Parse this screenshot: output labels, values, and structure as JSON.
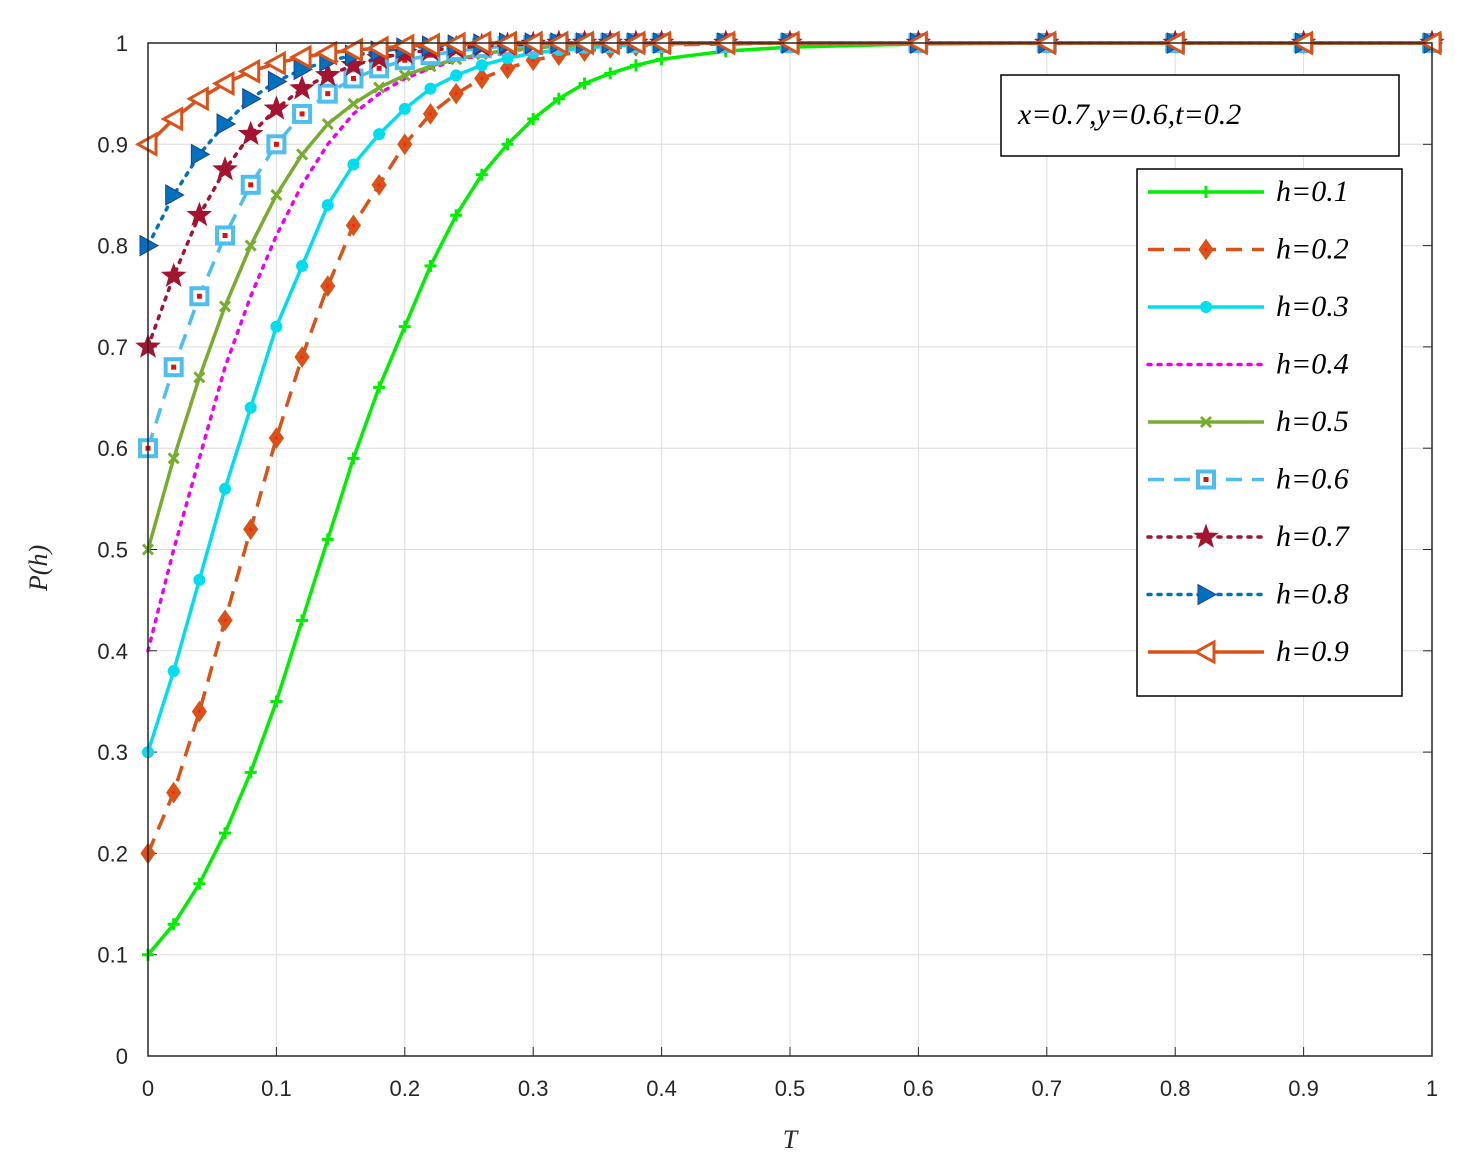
{
  "chart_data": {
    "type": "line",
    "title": "",
    "xlabel": "T",
    "ylabel": "P(h)",
    "xlim": [
      0,
      1
    ],
    "ylim": [
      0,
      1
    ],
    "grid": true,
    "legend_position": "right-top",
    "annotation": "x=0.7,y=0.6,t=0.2",
    "x_ticks": [
      "0",
      "0.1",
      "0.2",
      "0.3",
      "0.4",
      "0.5",
      "0.6",
      "0.7",
      "0.8",
      "0.9",
      "1"
    ],
    "y_ticks": [
      "0",
      "0.1",
      "0.2",
      "0.3",
      "0.4",
      "0.5",
      "0.6",
      "0.7",
      "0.8",
      "0.9",
      "1"
    ],
    "x": [
      0,
      0.02,
      0.04,
      0.06,
      0.08,
      0.1,
      0.12,
      0.14,
      0.16,
      0.18,
      0.2,
      0.22,
      0.24,
      0.26,
      0.28,
      0.3,
      0.32,
      0.34,
      0.36,
      0.38,
      0.4,
      0.45,
      0.5,
      0.6,
      0.7,
      0.8,
      0.9,
      1.0
    ],
    "series": [
      {
        "name": "h=0.1",
        "color": "#00ee00",
        "dash": "solid",
        "marker": "plus",
        "values": [
          0.1,
          0.13,
          0.17,
          0.22,
          0.28,
          0.35,
          0.43,
          0.51,
          0.59,
          0.66,
          0.72,
          0.78,
          0.83,
          0.87,
          0.9,
          0.925,
          0.945,
          0.96,
          0.97,
          0.978,
          0.984,
          0.992,
          0.996,
          0.999,
          1,
          1,
          1,
          1
        ]
      },
      {
        "name": "h=0.2",
        "color": "#d95319",
        "dash": "dash",
        "marker": "diamond",
        "values": [
          0.2,
          0.26,
          0.34,
          0.43,
          0.52,
          0.61,
          0.69,
          0.76,
          0.82,
          0.86,
          0.9,
          0.93,
          0.95,
          0.965,
          0.975,
          0.983,
          0.988,
          0.992,
          0.995,
          0.997,
          0.998,
          0.999,
          1,
          1,
          1,
          1,
          1,
          1
        ]
      },
      {
        "name": "h=0.3",
        "color": "#00ddee",
        "dash": "solid",
        "marker": "circle",
        "values": [
          0.3,
          0.38,
          0.47,
          0.56,
          0.64,
          0.72,
          0.78,
          0.84,
          0.88,
          0.91,
          0.935,
          0.955,
          0.968,
          0.978,
          0.985,
          0.99,
          0.993,
          0.995,
          0.997,
          0.998,
          0.999,
          1,
          1,
          1,
          1,
          1,
          1,
          1
        ]
      },
      {
        "name": "h=0.4",
        "color": "#ee00ee",
        "dash": "dot",
        "marker": "none",
        "values": [
          0.4,
          0.5,
          0.59,
          0.68,
          0.75,
          0.81,
          0.86,
          0.9,
          0.93,
          0.95,
          0.965,
          0.975,
          0.983,
          0.988,
          0.992,
          0.995,
          0.997,
          0.998,
          0.999,
          0.999,
          1,
          1,
          1,
          1,
          1,
          1,
          1,
          1
        ]
      },
      {
        "name": "h=0.5",
        "color": "#77ac30",
        "dash": "solid",
        "marker": "x",
        "values": [
          0.5,
          0.59,
          0.67,
          0.74,
          0.8,
          0.85,
          0.89,
          0.92,
          0.94,
          0.956,
          0.968,
          0.977,
          0.984,
          0.989,
          0.993,
          0.995,
          0.997,
          0.998,
          0.999,
          1,
          1,
          1,
          1,
          1,
          1,
          1,
          1,
          1
        ]
      },
      {
        "name": "h=0.6",
        "color": "#4dbeee",
        "dash": "dash",
        "marker": "square",
        "values": [
          0.6,
          0.68,
          0.75,
          0.81,
          0.86,
          0.9,
          0.93,
          0.95,
          0.965,
          0.975,
          0.983,
          0.988,
          0.992,
          0.995,
          0.997,
          0.998,
          0.999,
          1,
          1,
          1,
          1,
          1,
          1,
          1,
          1,
          1,
          1,
          1
        ]
      },
      {
        "name": "h=0.7",
        "color": "#a2142f",
        "dash": "dot",
        "marker": "star",
        "values": [
          0.7,
          0.77,
          0.83,
          0.875,
          0.91,
          0.935,
          0.955,
          0.968,
          0.978,
          0.985,
          0.99,
          0.993,
          0.995,
          0.997,
          0.998,
          0.999,
          1,
          1,
          1,
          1,
          1,
          1,
          1,
          1,
          1,
          1,
          1,
          1
        ]
      },
      {
        "name": "h=0.8",
        "color": "#0072bd",
        "dash": "dot",
        "marker": "triangle-right",
        "values": [
          0.8,
          0.85,
          0.89,
          0.92,
          0.945,
          0.962,
          0.974,
          0.982,
          0.988,
          0.992,
          0.995,
          0.997,
          0.998,
          0.999,
          1,
          1,
          1,
          1,
          1,
          1,
          1,
          1,
          1,
          1,
          1,
          1,
          1,
          1
        ]
      },
      {
        "name": "h=0.9",
        "color": "#d95319",
        "dash": "solid",
        "marker": "triangle-left",
        "values": [
          0.9,
          0.925,
          0.945,
          0.96,
          0.972,
          0.98,
          0.986,
          0.99,
          0.993,
          0.995,
          0.997,
          0.998,
          0.999,
          1,
          1,
          1,
          1,
          1,
          1,
          1,
          1,
          1,
          1,
          1,
          1,
          1,
          1,
          1
        ]
      }
    ]
  }
}
